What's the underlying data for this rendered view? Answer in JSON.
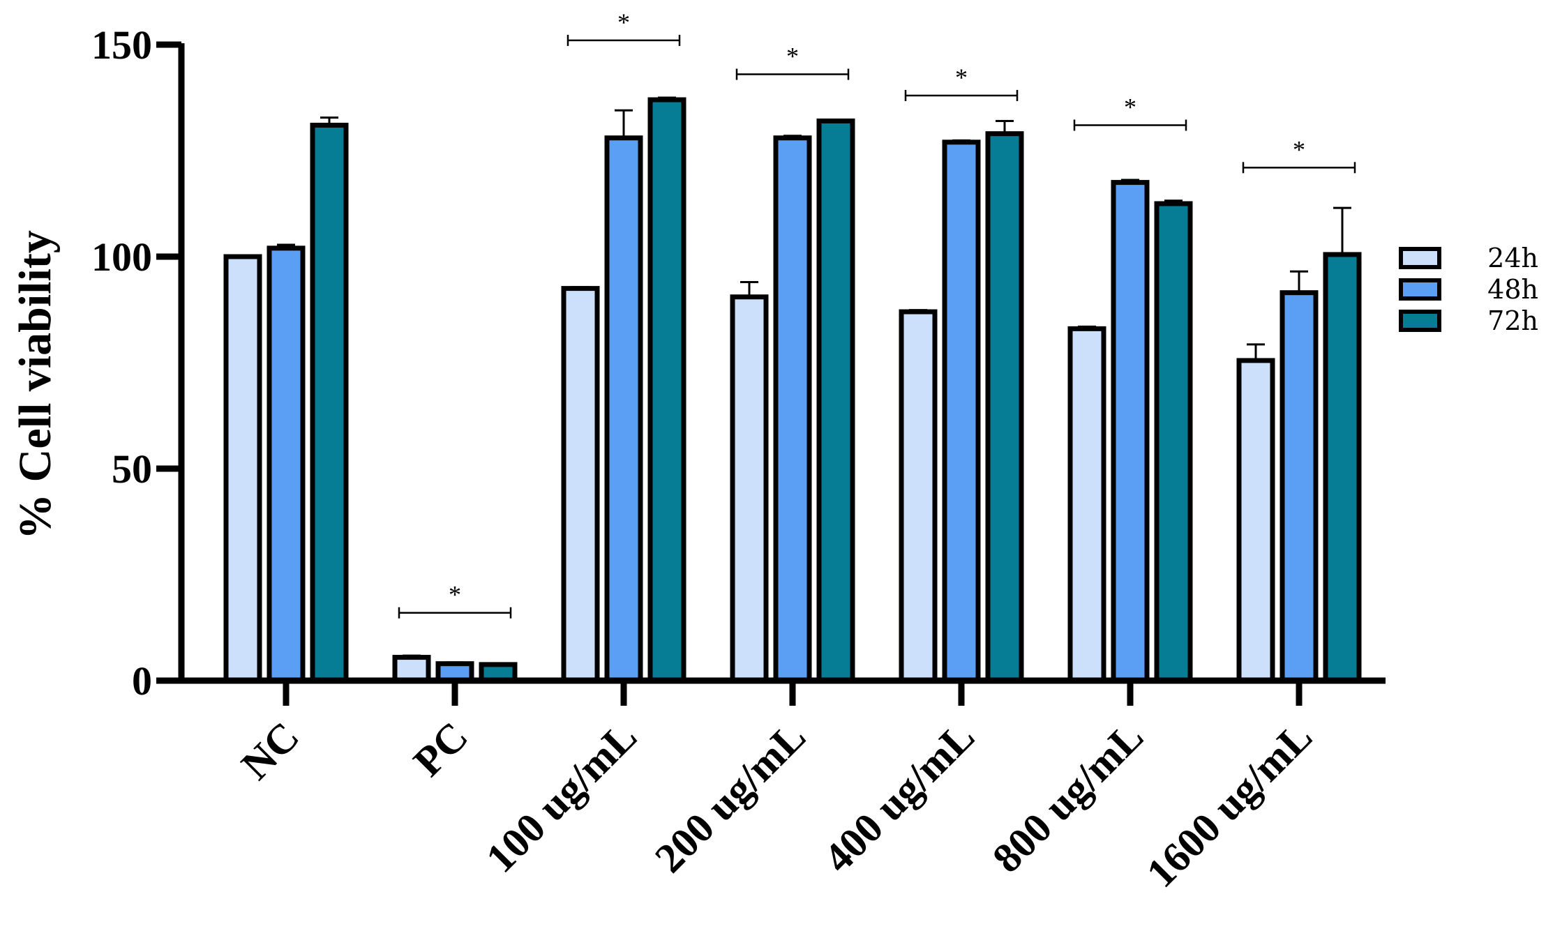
{
  "chart_data": {
    "type": "bar",
    "title": "",
    "xlabel": "",
    "ylabel": "% Cell viability",
    "ylim": [
      0,
      150
    ],
    "yticks": [
      "0",
      "50",
      "100",
      "150"
    ],
    "categories": [
      "NC",
      "PC",
      "100 ug/mL",
      "200 ug/mL",
      "400 ug/mL",
      "800 ug/mL",
      "1600 ug/mL"
    ],
    "series": [
      {
        "name": "24h",
        "color": "#cce0fb",
        "values": [
          100,
          5.5,
          92.5,
          90.5,
          87,
          83,
          75.5
        ],
        "errors": [
          0.3,
          0.4,
          0.3,
          3.5,
          0.4,
          0.5,
          3.8
        ]
      },
      {
        "name": "48h",
        "color": "#5b9ff5",
        "values": [
          102,
          4,
          128,
          128,
          127,
          117.5,
          91.5
        ],
        "errors": [
          0.8,
          0.3,
          6.5,
          0.5,
          0.4,
          0.6,
          5
        ]
      },
      {
        "name": "72h",
        "color": "#077d95",
        "values": [
          131,
          3.8,
          137,
          132,
          129,
          112.5,
          100.5
        ],
        "errors": [
          1.8,
          0.3,
          0.5,
          0.3,
          3,
          0.7,
          11
        ]
      }
    ],
    "significance": [
      {
        "category": "NC",
        "label": ""
      },
      {
        "category": "PC",
        "label": "*",
        "y": 16
      },
      {
        "category": "100 ug/mL",
        "label": "*",
        "y": 151
      },
      {
        "category": "200 ug/mL",
        "label": "*",
        "y": 143
      },
      {
        "category": "400 ug/mL",
        "label": "*",
        "y": 138
      },
      {
        "category": "800 ug/mL",
        "label": "*",
        "y": 131
      },
      {
        "category": "1600 ug/mL",
        "label": "*",
        "y": 121
      }
    ],
    "legend": {
      "position": "right",
      "entries": [
        "24h",
        "48h",
        "72h"
      ]
    },
    "grid": false
  }
}
